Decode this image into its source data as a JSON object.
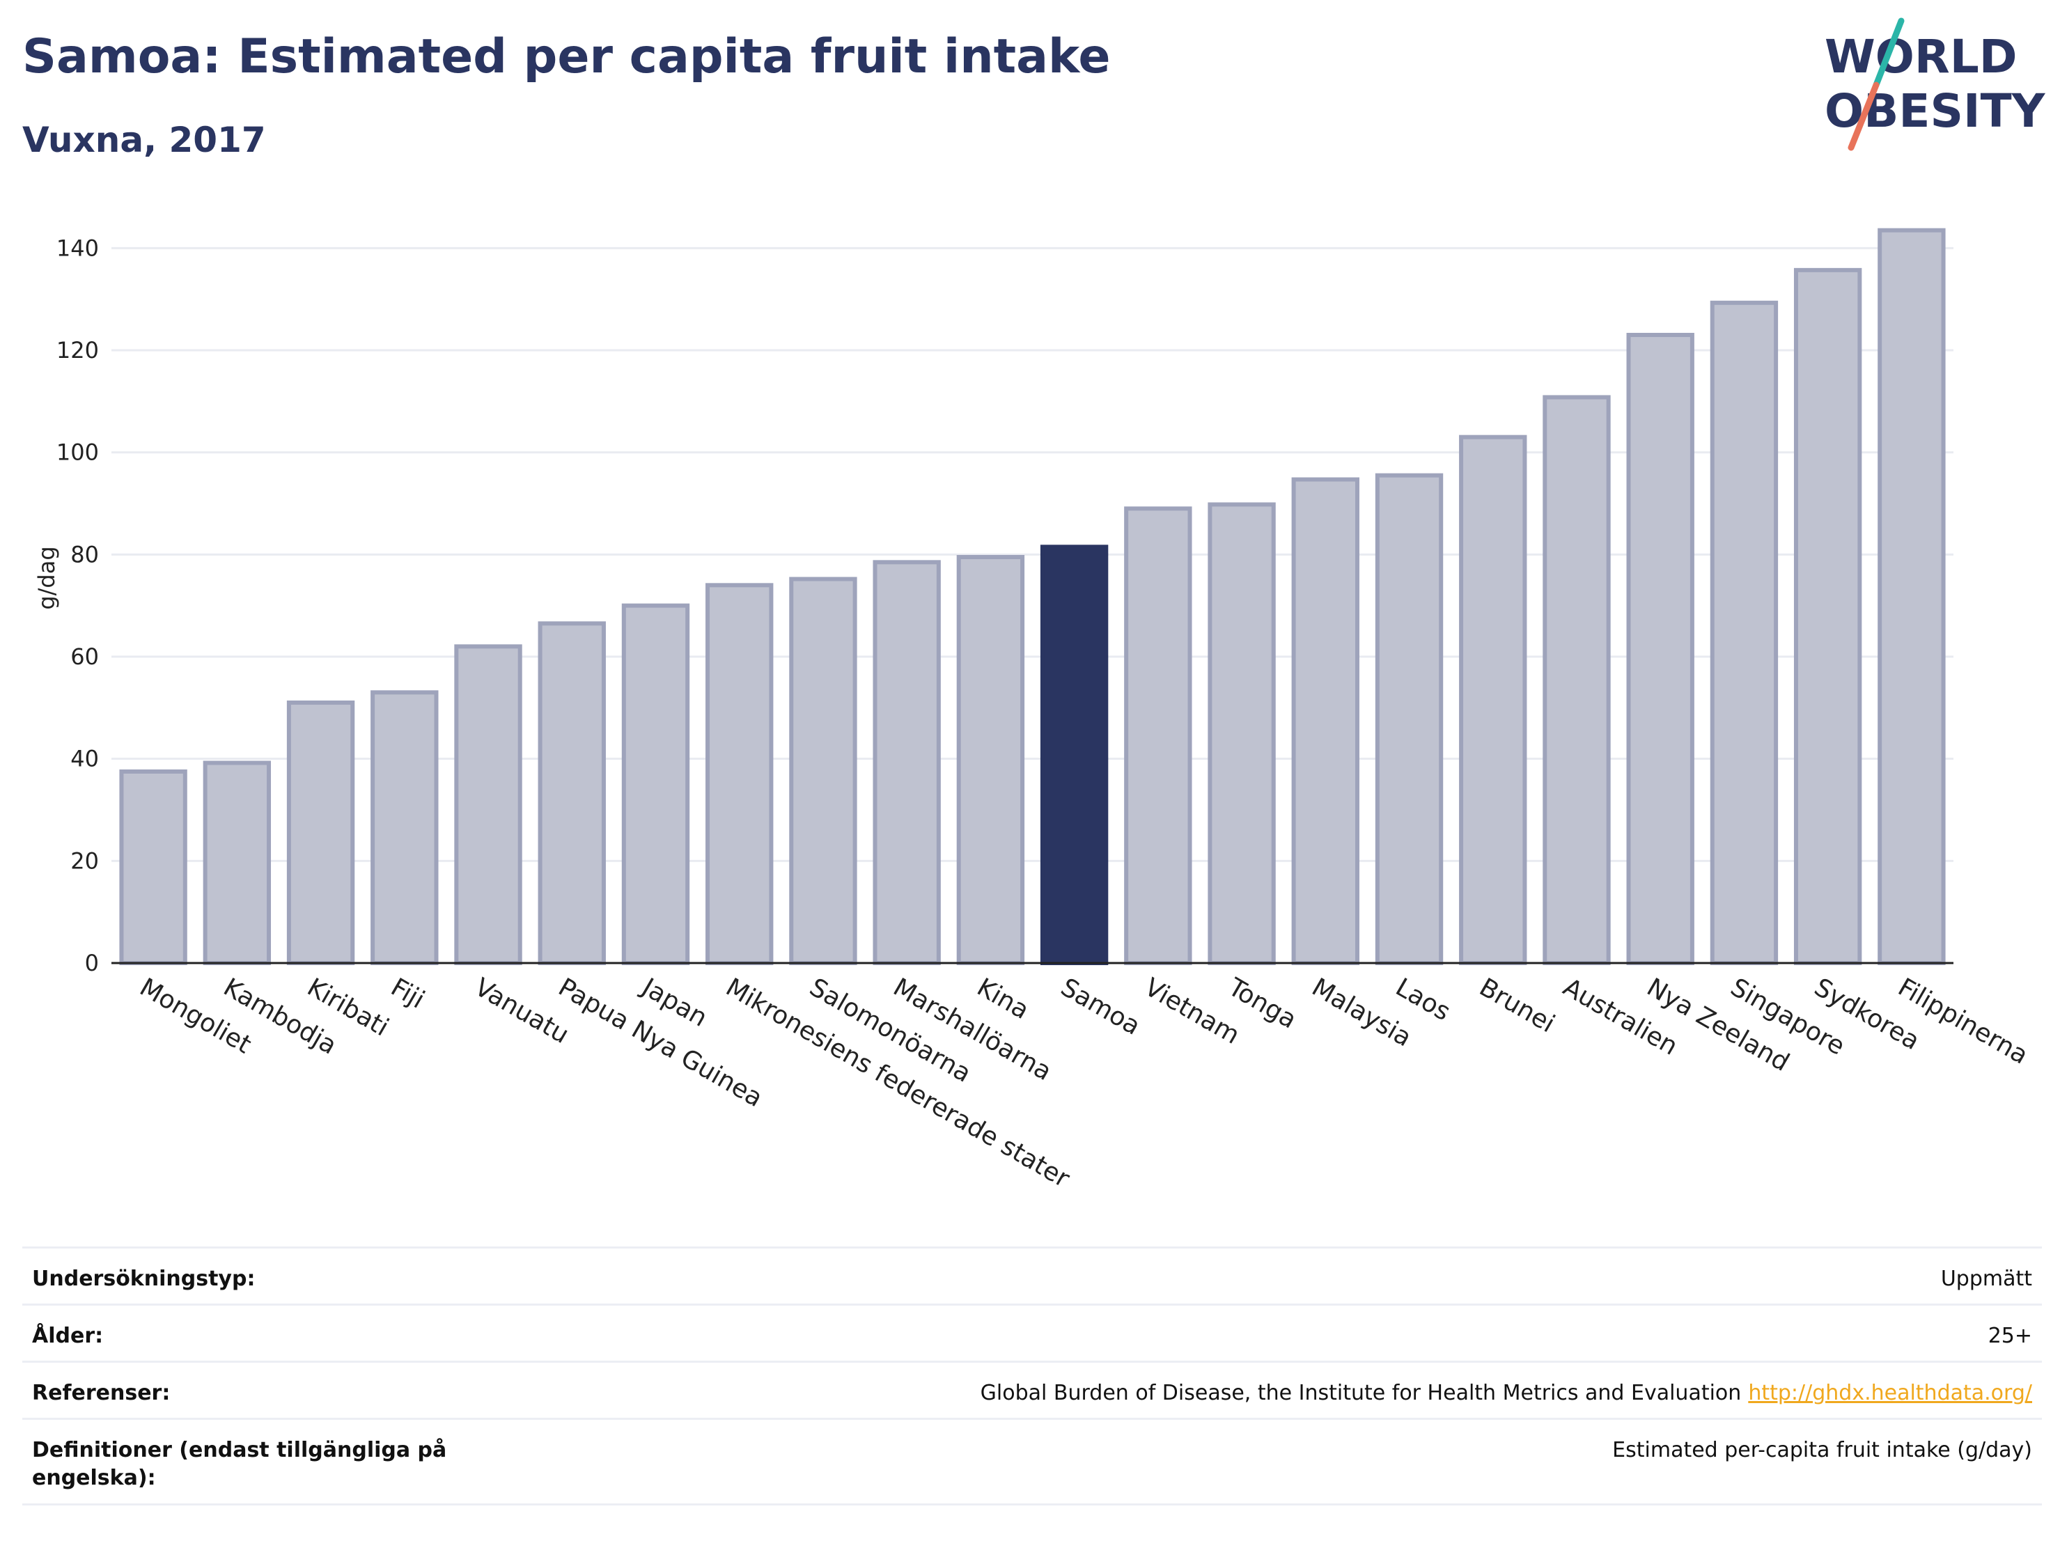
{
  "header": {
    "title": "Samoa: Estimated per capita fruit intake",
    "subtitle": "Vuxna, 2017"
  },
  "logo": {
    "line1": "WORLD",
    "line2": "OBESITY",
    "colors": {
      "text": "#2a3561",
      "slash_top": "#2bb5a8",
      "slash_bottom": "#e8735a"
    }
  },
  "chart_data": {
    "type": "bar",
    "title": "Samoa: Estimated per capita fruit intake",
    "subtitle": "Vuxna, 2017",
    "ylabel": "g/dag",
    "xlabel": "",
    "ylim": [
      0,
      150
    ],
    "yticks": [
      0,
      20,
      40,
      60,
      80,
      100,
      120,
      140
    ],
    "grid": true,
    "highlight": "Samoa",
    "colors": {
      "bar": "#bfc2d0",
      "bar_border": "#9ea3bb",
      "highlight": "#2a3561"
    },
    "categories": [
      "Mongoliet",
      "Kambodja",
      "Kiribati",
      "Fiji",
      "Vanuatu",
      "Papua Nya Guinea",
      "Japan",
      "Mikronesiens federerade stater",
      "Salomonöarna",
      "Marshallöarna",
      "Kina",
      "Samoa",
      "Vietnam",
      "Tonga",
      "Malaysia",
      "Laos",
      "Brunei",
      "Australien",
      "Nya Zeeland",
      "Singapore",
      "Sydkorea",
      "Filippinerna"
    ],
    "values": [
      37.5,
      39.2,
      51,
      53,
      62,
      66.5,
      70,
      74,
      75.2,
      78.5,
      79.5,
      81.5,
      89,
      89.8,
      94.7,
      95.5,
      103,
      110.8,
      123,
      129.3,
      135.7,
      143.5
    ]
  },
  "meta": {
    "rows": [
      {
        "label": "Undersökningstyp:",
        "value": "Uppmätt",
        "link": ""
      },
      {
        "label": "Ålder:",
        "value": "25+",
        "link": ""
      },
      {
        "label": "Referenser:",
        "value": "Global Burden of Disease, the Institute for Health Metrics and Evaluation",
        "link": "http://ghdx.healthdata.org/"
      },
      {
        "label": "Definitioner (endast tillgängliga på engelska):",
        "value": "Estimated per-capita fruit intake (g/day)",
        "link": ""
      }
    ]
  }
}
